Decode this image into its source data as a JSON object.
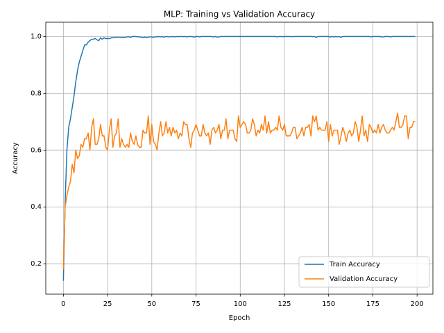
{
  "chart_data": {
    "type": "line",
    "title": "MLP: Training vs Validation Accuracy",
    "x_label": "Epoch",
    "y_label": "Accuracy",
    "x": [
      0,
      1,
      2,
      3,
      4,
      5,
      6,
      7,
      8,
      9,
      10,
      11,
      12,
      13,
      14,
      15,
      16,
      17,
      18,
      19,
      20,
      21,
      22,
      23,
      24,
      25,
      26,
      27,
      28,
      29,
      30,
      31,
      32,
      33,
      34,
      35,
      36,
      37,
      38,
      39,
      40,
      41,
      42,
      43,
      44,
      45,
      46,
      47,
      48,
      49,
      50,
      51,
      52,
      53,
      54,
      55,
      56,
      57,
      58,
      59,
      60,
      61,
      62,
      63,
      64,
      65,
      66,
      67,
      68,
      69,
      70,
      71,
      72,
      73,
      74,
      75,
      76,
      77,
      78,
      79,
      80,
      81,
      82,
      83,
      84,
      85,
      86,
      87,
      88,
      89,
      90,
      91,
      92,
      93,
      94,
      95,
      96,
      97,
      98,
      99,
      100,
      101,
      102,
      103,
      104,
      105,
      106,
      107,
      108,
      109,
      110,
      111,
      112,
      113,
      114,
      115,
      116,
      117,
      118,
      119,
      120,
      121,
      122,
      123,
      124,
      125,
      126,
      127,
      128,
      129,
      130,
      131,
      132,
      133,
      134,
      135,
      136,
      137,
      138,
      139,
      140,
      141,
      142,
      143,
      144,
      145,
      146,
      147,
      148,
      149,
      150,
      151,
      152,
      153,
      154,
      155,
      156,
      157,
      158,
      159,
      160,
      161,
      162,
      163,
      164,
      165,
      166,
      167,
      168,
      169,
      170,
      171,
      172,
      173,
      174,
      175,
      176,
      177,
      178,
      179,
      180,
      181,
      182,
      183,
      184,
      185,
      186,
      187,
      188,
      189,
      190,
      191,
      192,
      193,
      194,
      195,
      196,
      197,
      198,
      199
    ],
    "series": [
      {
        "name": "Train Accuracy",
        "color": "#1f77b4",
        "values": [
          0.14,
          0.42,
          0.6,
          0.68,
          0.71,
          0.75,
          0.79,
          0.84,
          0.88,
          0.91,
          0.93,
          0.95,
          0.97,
          0.97,
          0.98,
          0.985,
          0.99,
          0.99,
          0.993,
          0.988,
          0.985,
          0.995,
          0.99,
          0.995,
          0.992,
          0.993,
          0.992,
          0.995,
          0.995,
          0.996,
          0.996,
          0.997,
          0.997,
          0.995,
          0.997,
          0.996,
          0.998,
          0.999,
          0.996,
          1.0,
          1.0,
          1.0,
          0.998,
          0.999,
          0.996,
          0.995,
          0.998,
          0.995,
          0.997,
          0.998,
          0.998,
          0.996,
          0.999,
          0.998,
          1.0,
          0.998,
          0.999,
          0.997,
          1.0,
          0.999,
          0.998,
          0.999,
          1.0,
          0.998,
          1.0,
          0.999,
          1.0,
          1.0,
          0.999,
          1.0,
          0.998,
          1.0,
          1.0,
          0.999,
          0.997,
          1.0,
          1.0,
          0.998,
          1.0,
          1.0,
          1.0,
          1.0,
          1.0,
          1.0,
          0.999,
          0.998,
          1.0,
          0.997,
          0.998,
          1.0,
          1.0,
          1.0,
          1.0,
          1.0,
          1.0,
          1.0,
          1.0,
          1.0,
          1.0,
          1.0,
          1.0,
          1.0,
          1.0,
          1.0,
          1.0,
          1.0,
          1.0,
          1.0,
          1.0,
          1.0,
          1.0,
          1.0,
          1.0,
          1.0,
          1.0,
          1.0,
          1.0,
          1.0,
          1.0,
          1.0,
          1.0,
          0.998,
          1.0,
          1.0,
          0.999,
          1.0,
          1.0,
          1.0,
          1.0,
          0.999,
          1.0,
          1.0,
          1.0,
          1.0,
          1.0,
          1.0,
          1.0,
          1.0,
          1.0,
          1.0,
          1.0,
          0.999,
          1.0,
          0.996,
          1.0,
          1.0,
          1.0,
          1.0,
          1.0,
          1.0,
          1.0,
          0.997,
          1.0,
          0.998,
          1.0,
          0.998,
          1.0,
          0.996,
          1.0,
          1.0,
          1.0,
          1.0,
          1.0,
          1.0,
          1.0,
          1.0,
          1.0,
          1.0,
          1.0,
          1.0,
          1.0,
          1.0,
          1.0,
          1.0,
          0.998,
          1.0,
          1.0,
          1.0,
          1.0,
          1.0,
          0.998,
          0.998,
          1.0,
          1.0,
          1.0,
          0.998,
          1.0,
          1.0,
          1.0,
          1.0,
          1.0,
          1.0,
          1.0,
          1.0,
          1.0,
          1.0,
          1.0,
          1.0,
          1.0,
          1.0
        ]
      },
      {
        "name": "Validation Accuracy",
        "color": "#ff7f0e",
        "values": [
          0.18,
          0.4,
          0.44,
          0.47,
          0.49,
          0.55,
          0.52,
          0.6,
          0.57,
          0.58,
          0.62,
          0.61,
          0.64,
          0.64,
          0.66,
          0.6,
          0.68,
          0.71,
          0.62,
          0.62,
          0.64,
          0.69,
          0.65,
          0.65,
          0.61,
          0.6,
          0.67,
          0.71,
          0.61,
          0.65,
          0.66,
          0.71,
          0.61,
          0.64,
          0.62,
          0.61,
          0.62,
          0.61,
          0.66,
          0.63,
          0.62,
          0.65,
          0.62,
          0.61,
          0.61,
          0.67,
          0.66,
          0.66,
          0.72,
          0.62,
          0.69,
          0.63,
          0.62,
          0.6,
          0.66,
          0.7,
          0.65,
          0.66,
          0.7,
          0.66,
          0.68,
          0.65,
          0.68,
          0.66,
          0.67,
          0.64,
          0.66,
          0.65,
          0.7,
          0.69,
          0.69,
          0.64,
          0.61,
          0.66,
          0.67,
          0.69,
          0.67,
          0.65,
          0.65,
          0.69,
          0.66,
          0.65,
          0.66,
          0.62,
          0.67,
          0.68,
          0.66,
          0.67,
          0.69,
          0.64,
          0.67,
          0.67,
          0.71,
          0.64,
          0.67,
          0.67,
          0.67,
          0.64,
          0.63,
          0.72,
          0.68,
          0.69,
          0.7,
          0.69,
          0.66,
          0.66,
          0.67,
          0.71,
          0.69,
          0.65,
          0.67,
          0.66,
          0.69,
          0.67,
          0.72,
          0.66,
          0.7,
          0.66,
          0.67,
          0.67,
          0.68,
          0.67,
          0.72,
          0.68,
          0.67,
          0.69,
          0.65,
          0.65,
          0.65,
          0.66,
          0.68,
          0.68,
          0.64,
          0.65,
          0.66,
          0.68,
          0.65,
          0.68,
          0.68,
          0.69,
          0.65,
          0.72,
          0.7,
          0.72,
          0.67,
          0.68,
          0.67,
          0.67,
          0.67,
          0.7,
          0.63,
          0.69,
          0.65,
          0.67,
          0.67,
          0.67,
          0.62,
          0.65,
          0.68,
          0.66,
          0.63,
          0.66,
          0.67,
          0.65,
          0.66,
          0.7,
          0.68,
          0.63,
          0.67,
          0.72,
          0.65,
          0.67,
          0.63,
          0.69,
          0.68,
          0.66,
          0.67,
          0.66,
          0.69,
          0.66,
          0.68,
          0.69,
          0.67,
          0.66,
          0.66,
          0.67,
          0.68,
          0.67,
          0.7,
          0.73,
          0.68,
          0.68,
          0.69,
          0.72,
          0.72,
          0.64,
          0.68,
          0.68,
          0.7,
          0.7
        ]
      }
    ],
    "xlim": [
      -9.95,
      208.95
    ],
    "xticks": [
      0,
      25,
      50,
      75,
      100,
      125,
      150,
      175,
      200
    ],
    "ylim": [
      0.093,
      1.05
    ],
    "yticks": [
      0.2,
      0.4,
      0.6,
      0.8,
      {
        "value": 1,
        "label": "1.0"
      }
    ],
    "grid": true,
    "legend": "lower right"
  }
}
